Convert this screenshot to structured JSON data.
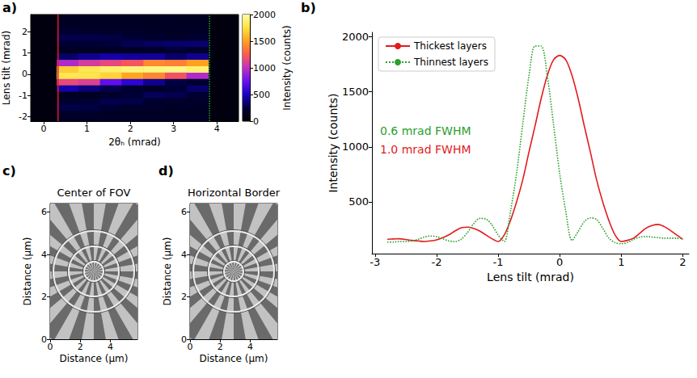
{
  "chart_data": [
    {
      "panel_label": "a)",
      "type": "heatmap",
      "x_label": "2θₕ (mrad)",
      "y_label": "Lens tilt (mrad)",
      "xlim": [
        -0.3,
        4.5
      ],
      "xticks": [
        0,
        1,
        2,
        3,
        4
      ],
      "ylim": [
        -2.2,
        2.8
      ],
      "yticks": [
        -2,
        -1,
        0,
        1,
        2
      ],
      "x_bins": [
        0.3,
        0.8,
        1.3,
        1.8,
        2.3,
        2.8,
        3.3,
        3.8
      ],
      "y_bins": [
        -2.2,
        -2.0,
        -1.7,
        -1.4,
        -1.1,
        -0.8,
        -0.5,
        -0.2,
        0.1,
        0.4,
        0.7,
        1.0,
        1.3,
        1.6,
        1.9,
        2.2,
        2.5,
        2.8
      ],
      "cells": [
        [
          150,
          170,
          270,
          200,
          140,
          450,
          1150,
          1800,
          1680,
          950,
          330,
          140,
          210,
          280,
          190,
          150,
          150
        ],
        [
          150,
          180,
          260,
          220,
          140,
          360,
          1100,
          1780,
          1800,
          1080,
          400,
          140,
          220,
          270,
          180,
          150,
          140
        ],
        [
          150,
          160,
          210,
          280,
          170,
          280,
          720,
          1700,
          1860,
          1150,
          450,
          150,
          250,
          260,
          170,
          150,
          140
        ],
        [
          150,
          160,
          180,
          270,
          230,
          200,
          560,
          1520,
          1900,
          1220,
          420,
          160,
          290,
          230,
          170,
          150,
          140
        ],
        [
          150,
          160,
          170,
          200,
          300,
          170,
          400,
          1410,
          1920,
          1420,
          420,
          170,
          310,
          200,
          160,
          150,
          140
        ],
        [
          150,
          150,
          160,
          180,
          280,
          230,
          260,
          1200,
          1930,
          1390,
          330,
          220,
          330,
          170,
          150,
          140,
          140
        ],
        [
          150,
          150,
          160,
          180,
          210,
          330,
          200,
          960,
          1880,
          1500,
          400,
          180,
          340,
          200,
          160,
          150,
          140
        ]
      ],
      "colorbar": {
        "label": "Intensity (counts)",
        "range": [
          0,
          2000
        ],
        "ticks": [
          0,
          500,
          1000,
          1500,
          2000
        ]
      },
      "lines": [
        {
          "x": 0.33,
          "color": "#e31a1c",
          "line_style": "solid"
        },
        {
          "x": 3.83,
          "color": "#2ca02c",
          "line_style": "dotted"
        }
      ]
    },
    {
      "panel_label": "b)",
      "type": "line",
      "x_label": "Lens tilt (mrad)",
      "y_label": "Intensity (counts)",
      "xlim": [
        -3.05,
        2.1
      ],
      "xticks": [
        -3,
        -2,
        -1,
        0,
        1,
        2
      ],
      "ylim": [
        30,
        2040
      ],
      "yticks": [
        500,
        1000,
        1500,
        2000
      ],
      "legend": "upper left",
      "x": [
        -2.8,
        -2.7,
        -2.6,
        -2.5,
        -2.4,
        -2.3,
        -2.2,
        -2.1,
        -2.0,
        -1.9,
        -1.8,
        -1.7,
        -1.6,
        -1.5,
        -1.4,
        -1.3,
        -1.2,
        -1.1,
        -1.0,
        -0.9,
        -0.8,
        -0.7,
        -0.6,
        -0.5,
        -0.4,
        -0.3,
        -0.2,
        -0.1,
        0.0,
        0.1,
        0.2,
        0.3,
        0.4,
        0.5,
        0.6,
        0.7,
        0.8,
        0.9,
        1.0,
        1.1,
        1.2,
        1.3,
        1.4,
        1.5,
        1.6,
        1.7,
        1.8,
        1.9,
        2.0
      ],
      "series": [
        {
          "name": "Thickest layers",
          "color": "#e31a1c",
          "line_style": "solid",
          "values": [
            160,
            163,
            165,
            158,
            150,
            145,
            140,
            145,
            155,
            175,
            200,
            235,
            265,
            270,
            260,
            235,
            200,
            165,
            140,
            200,
            330,
            500,
            700,
            950,
            1190,
            1440,
            1650,
            1790,
            1830,
            1790,
            1650,
            1440,
            1190,
            950,
            700,
            500,
            330,
            200,
            140,
            150,
            170,
            215,
            260,
            285,
            295,
            275,
            240,
            200,
            160
          ]
        },
        {
          "name": "Thinnest layers",
          "color": "#2ca02c",
          "line_style": "dotted",
          "values": [
            135,
            135,
            140,
            140,
            145,
            160,
            180,
            190,
            185,
            165,
            145,
            140,
            160,
            220,
            300,
            350,
            345,
            290,
            200,
            140,
            410,
            760,
            1205,
            1640,
            1915,
            1915,
            1640,
            1205,
            760,
            410,
            150,
            230,
            320,
            355,
            340,
            260,
            170,
            130,
            120,
            130,
            160,
            180,
            185,
            180,
            175,
            170,
            170,
            170,
            170
          ]
        }
      ],
      "annotations": [
        {
          "text": "0.6 mrad FWHM",
          "color": "#2ca02c"
        },
        {
          "text": "1.0 mrad FWHM",
          "color": "#e31a1c"
        }
      ]
    },
    {
      "panel_label": "c)",
      "type": "image",
      "title": "Center of FOV",
      "x_label": "Distance (µm)",
      "y_label": "Distance (µm)",
      "xlim": [
        0,
        5.8
      ],
      "xticks": [
        0,
        2,
        4
      ],
      "ylim": [
        0,
        6.4
      ],
      "yticks": [
        0,
        2,
        4,
        6
      ]
    },
    {
      "panel_label": "d)",
      "type": "image",
      "title": "Horizontal Border",
      "x_label": "Distance (µm)",
      "y_label": "Distance (µm)",
      "xlim": [
        0,
        5.8
      ],
      "xticks": [
        0,
        2,
        4
      ],
      "ylim": [
        0,
        6.4
      ],
      "yticks": [
        0,
        2,
        4,
        6
      ]
    }
  ]
}
